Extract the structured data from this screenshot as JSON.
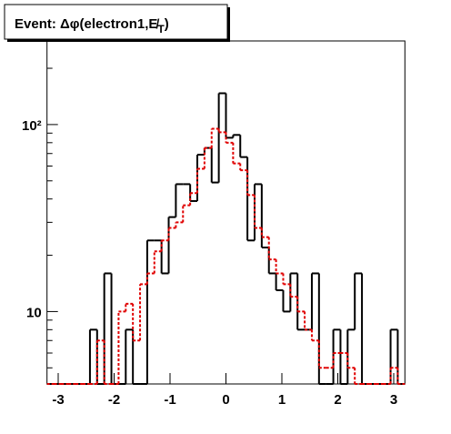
{
  "chart_data": {
    "type": "histogram",
    "title": {
      "parts": [
        "Event: Δφ(electron1,E̸",
        "T",
        ")"
      ]
    },
    "bins": [
      -3.2,
      -3.072,
      -2.944,
      -2.816,
      -2.688,
      -2.56,
      -2.432,
      -2.304,
      -2.176,
      -2.048,
      -1.92,
      -1.792,
      -1.664,
      -1.536,
      -1.408,
      -1.28,
      -1.152,
      -1.024,
      -0.896,
      -0.768,
      -0.64,
      -0.512,
      -0.384,
      -0.256,
      -0.128,
      0,
      0.128,
      0.256,
      0.384,
      0.512,
      0.64,
      0.768,
      0.896,
      1.024,
      1.152,
      1.28,
      1.408,
      1.536,
      1.664,
      1.792,
      1.92,
      2.048,
      2.176,
      2.304,
      2.432,
      2.56,
      2.688,
      2.816,
      2.944,
      3.072,
      3.2
    ],
    "series": [
      {
        "color": "#000000",
        "dashed": false,
        "values": [
          0,
          0,
          0,
          0,
          0,
          0,
          8,
          0,
          16,
          0,
          0,
          8,
          0,
          0,
          24,
          24,
          16,
          32,
          48,
          48,
          39,
          69,
          75,
          49,
          147,
          85,
          88,
          67,
          24,
          48,
          22,
          16,
          13,
          10,
          16,
          8,
          8,
          16,
          0,
          0,
          8,
          0,
          8,
          16,
          0,
          0,
          0,
          0,
          8,
          0
        ]
      },
      {
        "color": "#e00000",
        "dashed": true,
        "values": [
          0,
          0,
          0,
          0,
          0,
          0,
          0,
          7,
          0,
          0,
          10,
          11,
          7,
          14,
          16,
          21,
          24,
          28,
          30,
          37,
          43,
          58,
          75,
          95,
          91,
          80,
          62,
          57,
          42,
          28,
          25,
          19,
          16,
          14,
          12,
          10,
          8,
          7,
          5,
          5,
          6,
          6,
          5,
          4,
          0,
          0,
          0,
          0,
          5,
          0
        ]
      }
    ],
    "xlim": [
      -3.2,
      3.2
    ],
    "xticks": [
      -3,
      -2,
      -1,
      0,
      1,
      2,
      3
    ],
    "ylim": [
      4.1,
      280
    ],
    "log_y": true,
    "yticks": [
      {
        "value": 10,
        "label": "10"
      },
      {
        "value": 100,
        "label": "10²"
      }
    ],
    "yminorticks": [
      5,
      6,
      7,
      8,
      9,
      20,
      30,
      40,
      50,
      60,
      70,
      80,
      90,
      200
    ]
  }
}
